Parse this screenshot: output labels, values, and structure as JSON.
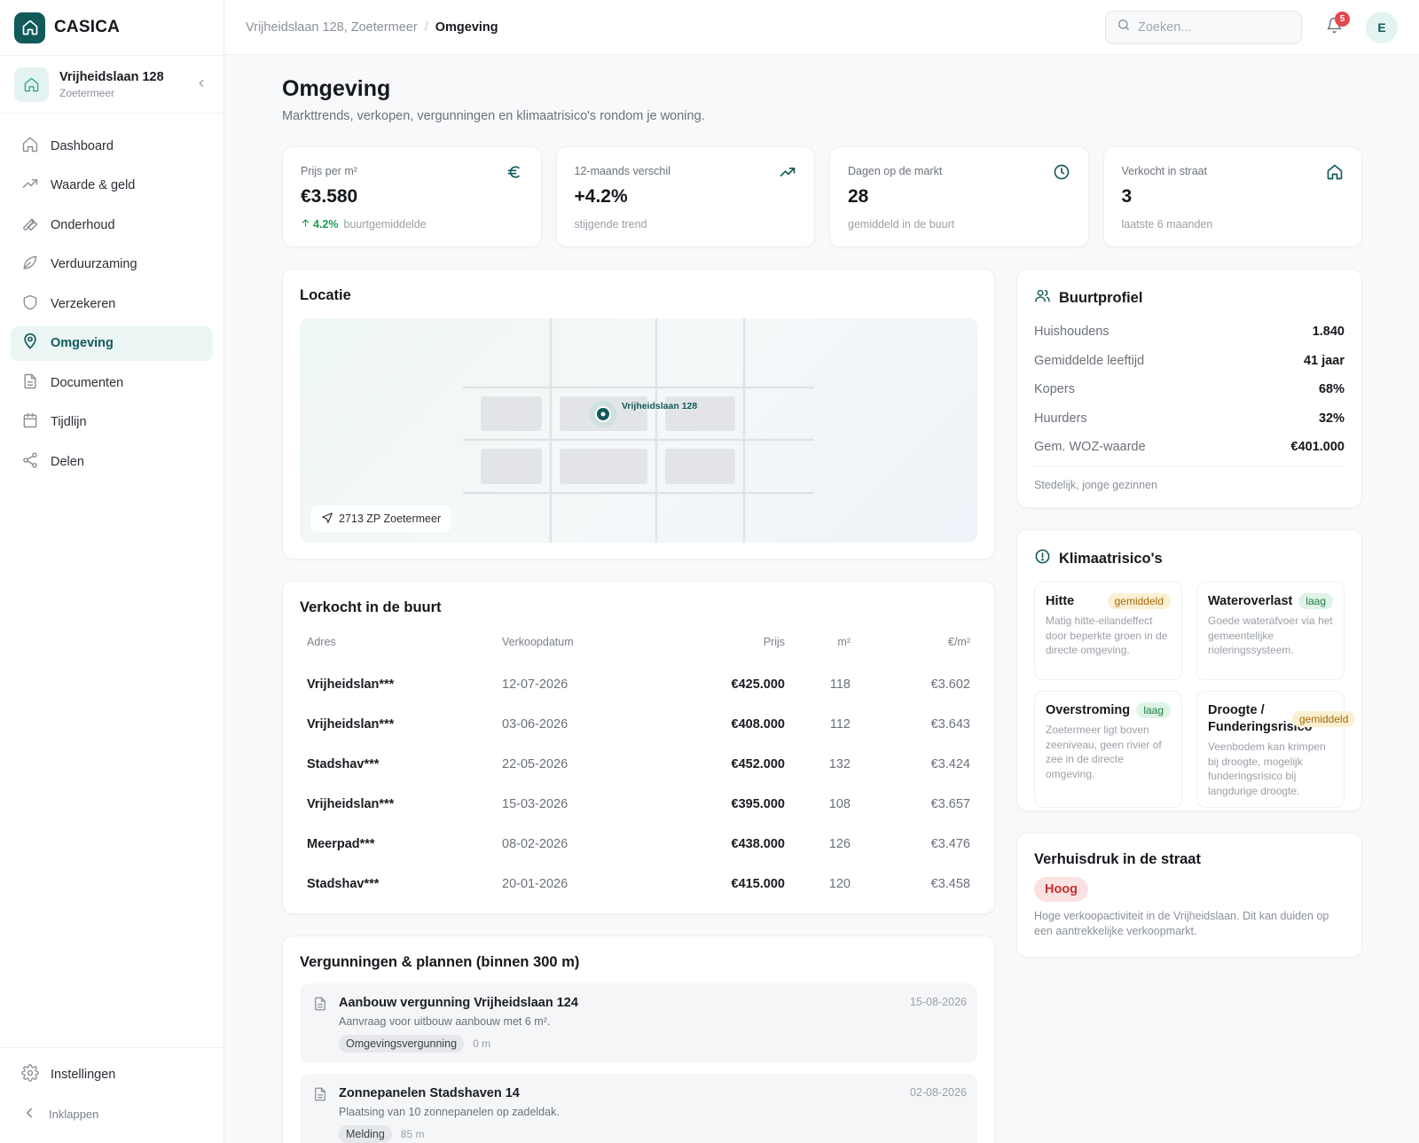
{
  "brand": {
    "name": "CASICA"
  },
  "property": {
    "name": "Vrijheidslaan 128",
    "city": "Zoetermeer"
  },
  "nav": [
    {
      "label": "Dashboard",
      "icon": "home-icon"
    },
    {
      "label": "Waarde & geld",
      "icon": "trending-up-icon"
    },
    {
      "label": "Onderhoud",
      "icon": "wrench-icon"
    },
    {
      "label": "Verduurzaming",
      "icon": "leaf-icon"
    },
    {
      "label": "Verzekeren",
      "icon": "shield-icon"
    },
    {
      "label": "Omgeving",
      "icon": "map-pin-icon",
      "active": true
    },
    {
      "label": "Documenten",
      "icon": "document-icon"
    },
    {
      "label": "Tijdlijn",
      "icon": "calendar-icon"
    },
    {
      "label": "Delen",
      "icon": "share-icon"
    }
  ],
  "sidebar_bottom": {
    "settings": "Instellingen",
    "collapse": "Inklappen"
  },
  "topbar": {
    "breadcrumb": [
      "Vrijheidslaan 128, Zoetermeer",
      "Omgeving"
    ],
    "breadcrumb_sep": "/",
    "search_placeholder": "Zoeken...",
    "notifications": "5",
    "avatar_initial": "E"
  },
  "page": {
    "title": "Omgeving",
    "subtitle": "Markttrends, verkopen, vergunningen en klimaatrisico's rondom je woning."
  },
  "kpis": [
    {
      "label": "Prijs per m²",
      "value": "€3.580",
      "trend": "4.2%",
      "sub": "buurtgemiddelde",
      "icon": "euro-icon"
    },
    {
      "label": "12-maands verschil",
      "value": "+4.2%",
      "sub": "stijgende trend",
      "icon": "trending-up-icon"
    },
    {
      "label": "Dagen op de markt",
      "value": "28",
      "sub": "gemiddeld in de buurt",
      "icon": "clock-icon"
    },
    {
      "label": "Verkocht in straat",
      "value": "3",
      "sub": "laatste 6 maanden",
      "icon": "home-icon"
    }
  ],
  "location": {
    "title": "Locatie",
    "marker_label": "Vrijheidslaan 128",
    "postcode": "2713 ZP Zoetermeer"
  },
  "sales": {
    "title": "Verkocht in de buurt",
    "headers": [
      "Adres",
      "Verkoopdatum",
      "Prijs",
      "m²",
      "€/m²"
    ],
    "rows": [
      [
        "Vrijheidslan***",
        "12-07-2026",
        "€425.000",
        "118",
        "€3.602"
      ],
      [
        "Vrijheidslan***",
        "03-06-2026",
        "€408.000",
        "112",
        "€3.643"
      ],
      [
        "Stadshav***",
        "22-05-2026",
        "€452.000",
        "132",
        "€3.424"
      ],
      [
        "Vrijheidslan***",
        "15-03-2026",
        "€395.000",
        "108",
        "€3.657"
      ],
      [
        "Meerpad***",
        "08-02-2026",
        "€438.000",
        "126",
        "€3.476"
      ],
      [
        "Stadshav***",
        "20-01-2026",
        "€415.000",
        "120",
        "€3.458"
      ]
    ]
  },
  "permits": {
    "title": "Vergunningen & plannen (binnen 300 m)",
    "items": [
      {
        "title": "Aanbouw vergunning Vrijheidslaan 124",
        "desc": "Aanvraag voor uitbouw aanbouw met 6 m².",
        "tag": "Omgevingsvergunning",
        "distance": "0 m",
        "date": "15-08-2026"
      },
      {
        "title": "Zonnepanelen Stadshaven 14",
        "desc": "Plaatsing van 10 zonnepanelen op zadeldak.",
        "tag": "Melding",
        "distance": "85 m",
        "date": "02-08-2026"
      }
    ]
  },
  "profile": {
    "title": "Buurtprofiel",
    "rows": [
      {
        "k": "Huishoudens",
        "v": "1.840"
      },
      {
        "k": "Gemiddelde leeftijd",
        "v": "41 jaar"
      },
      {
        "k": "Kopers",
        "v": "68%"
      },
      {
        "k": "Huurders",
        "v": "32%"
      },
      {
        "k": "Gem. WOZ-waarde",
        "v": "€401.000"
      }
    ],
    "note": "Stedelijk, jonge gezinnen"
  },
  "climate": {
    "title": "Klimaatrisico's",
    "items": [
      {
        "name": "Hitte",
        "level": "gemiddeld",
        "desc": "Matig hitte-eilandeffect door beperkte groen in de directe omgeving."
      },
      {
        "name": "Wateroverlast",
        "level": "laag",
        "desc": "Goede waterafvoer via het gemeentelijke rioleringssysteem."
      },
      {
        "name": "Overstroming",
        "level": "laag",
        "desc": "Zoetermeer ligt boven zeeniveau, geen rivier of zee in de directe omgeving."
      },
      {
        "name": "Droogte / Funderingsrisico",
        "level": "gemiddeld",
        "desc": "Veenbodem kan krimpen bij droogte, mogelijk funderingsrisico bij langdurige droogte."
      }
    ]
  },
  "pressure": {
    "title": "Verhuisdruk in de straat",
    "level": "Hoog",
    "text": "Hoge verkoopactiviteit in de Vrijheidslaan. Dit kan duiden op een aantrekkelijke verkoopmarkt."
  }
}
